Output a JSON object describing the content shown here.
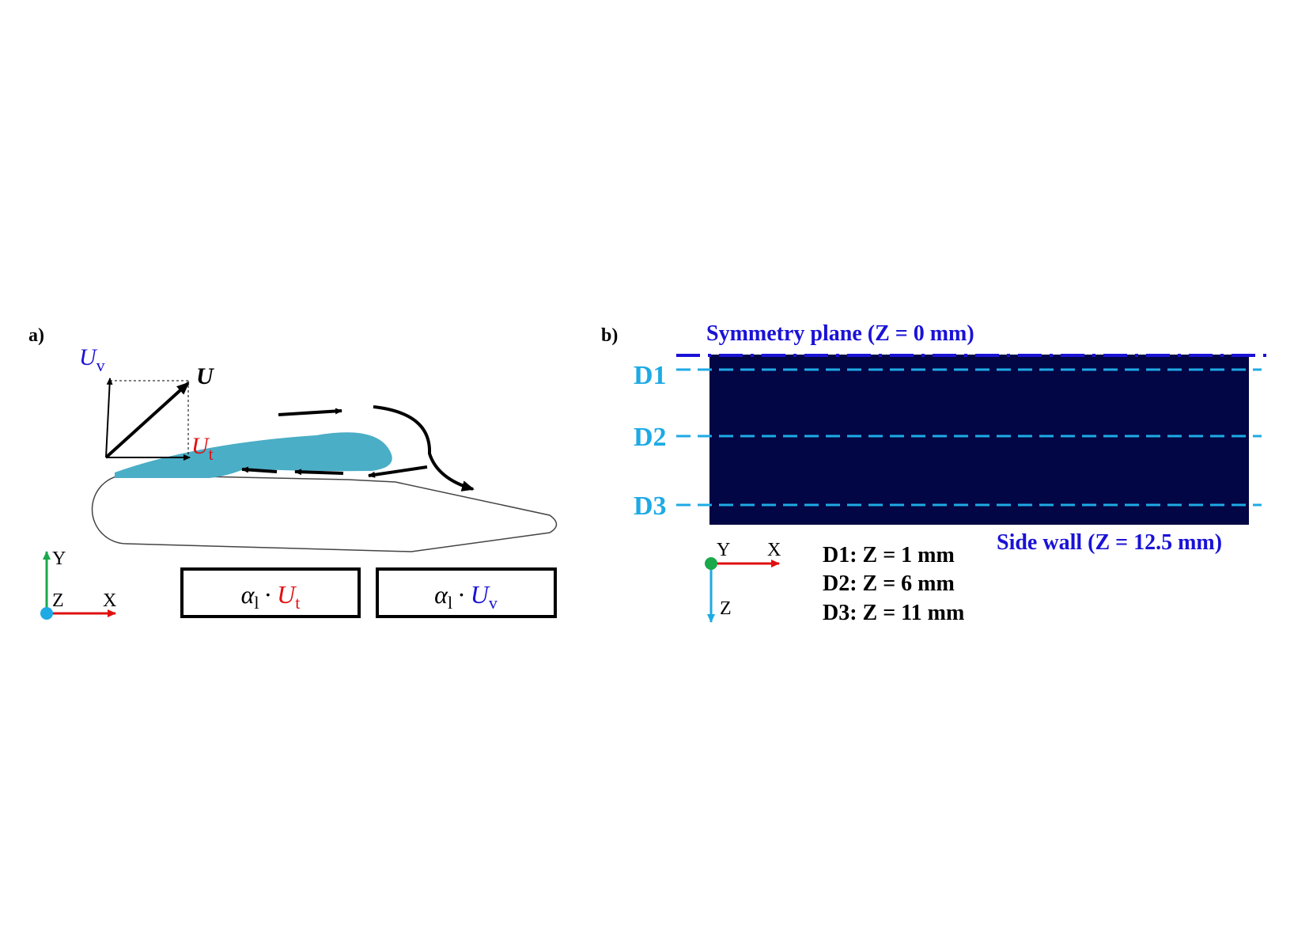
{
  "panel_a": {
    "label": "a)",
    "vectors": {
      "uv_symbol": "U",
      "uv_sub": "v",
      "u_symbol": "U",
      "ut_symbol": "U",
      "ut_sub": "t"
    },
    "axes": {
      "y": "Y",
      "z": "Z",
      "x": "X"
    },
    "boxes": [
      {
        "alpha": "α",
        "alpha_sub": "l",
        "dot": "·",
        "symbol": "U",
        "sub": "t"
      },
      {
        "alpha": "α",
        "alpha_sub": "l",
        "dot": "·",
        "symbol": "U",
        "sub": "v"
      }
    ]
  },
  "panel_b": {
    "label": "b)",
    "symmetry_label": "Symmetry plane (Z = 0 mm)",
    "side_wall_label": "Side wall (Z = 12.5 mm)",
    "lines": [
      {
        "label": "D1"
      },
      {
        "label": "D2"
      },
      {
        "label": "D3"
      }
    ],
    "axes": {
      "y": "Y",
      "x": "X",
      "z": "Z"
    },
    "legend": [
      "D1: Z = 1 mm",
      "D2: Z = 6 mm",
      "D3: Z = 11 mm"
    ]
  },
  "colors": {
    "film": "#4aaec6",
    "dark_panel": "#020645",
    "cyan_line": "#1eaae4",
    "blue_text": "#1a12d6",
    "red": "#e01010",
    "green": "#1aa84a",
    "black": "#000000"
  }
}
